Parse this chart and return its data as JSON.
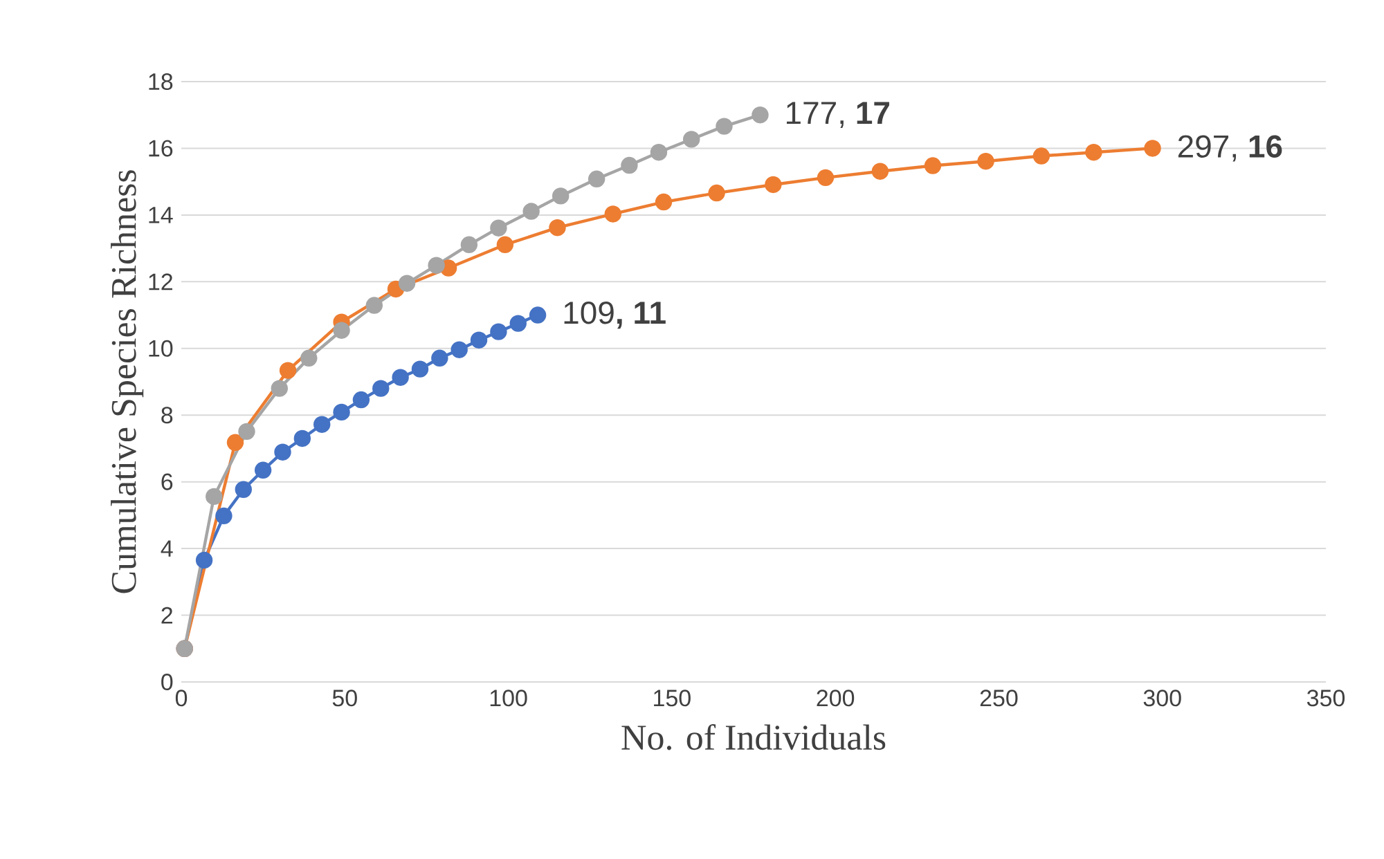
{
  "chart_data": {
    "type": "line",
    "xlabel": "No. of Individuals",
    "ylabel": "Cumulative Species Richness",
    "xlim": [
      0,
      350
    ],
    "xticks": [
      0,
      50,
      100,
      150,
      200,
      250,
      300,
      350
    ],
    "ylim": [
      0,
      18
    ],
    "yticks": [
      0,
      2,
      4,
      6,
      8,
      10,
      12,
      14,
      16,
      18
    ],
    "grid": "y",
    "marker": "circle",
    "line_style": "solid",
    "series": [
      {
        "color": "#4472c4",
        "x": [
          1,
          7,
          13,
          19,
          25,
          31,
          37,
          43,
          49,
          55,
          61,
          67,
          73,
          79,
          85,
          91,
          97,
          103,
          109
        ],
        "values": [
          1,
          3.65,
          4.98,
          5.77,
          6.35,
          6.89,
          7.3,
          7.72,
          8.09,
          8.46,
          8.8,
          9.13,
          9.38,
          9.71,
          9.96,
          10.25,
          10.5,
          10.75,
          11
        ]
      },
      {
        "color": "#ed7d31",
        "x": [
          1,
          16.5,
          32.6,
          49,
          65.6,
          81.7,
          99,
          115,
          132,
          147.5,
          163.7,
          181,
          197,
          213.7,
          229.8,
          246,
          263,
          279,
          297
        ],
        "values": [
          1,
          7.18,
          9.34,
          10.79,
          11.78,
          12.41,
          13.11,
          13.62,
          14.03,
          14.39,
          14.66,
          14.91,
          15.12,
          15.31,
          15.48,
          15.61,
          15.77,
          15.88,
          16
        ]
      },
      {
        "color": "#a5a5a5",
        "x": [
          1,
          10,
          20,
          30,
          39,
          49,
          59,
          69,
          78,
          88,
          97,
          107,
          116,
          127,
          137,
          146,
          156,
          166,
          177
        ],
        "values": [
          1,
          5.56,
          7.51,
          8.8,
          9.71,
          10.54,
          11.29,
          11.95,
          12.49,
          13.11,
          13.61,
          14.11,
          14.57,
          15.08,
          15.49,
          15.88,
          16.27,
          16.66,
          17
        ]
      }
    ],
    "annotations": [
      {
        "text": "109**, 11**",
        "x": 109,
        "y": 11
      },
      {
        "text": "177, **17**",
        "x": 177,
        "y": 17
      },
      {
        "text": "297, **16**",
        "x": 297,
        "y": 16
      }
    ]
  }
}
